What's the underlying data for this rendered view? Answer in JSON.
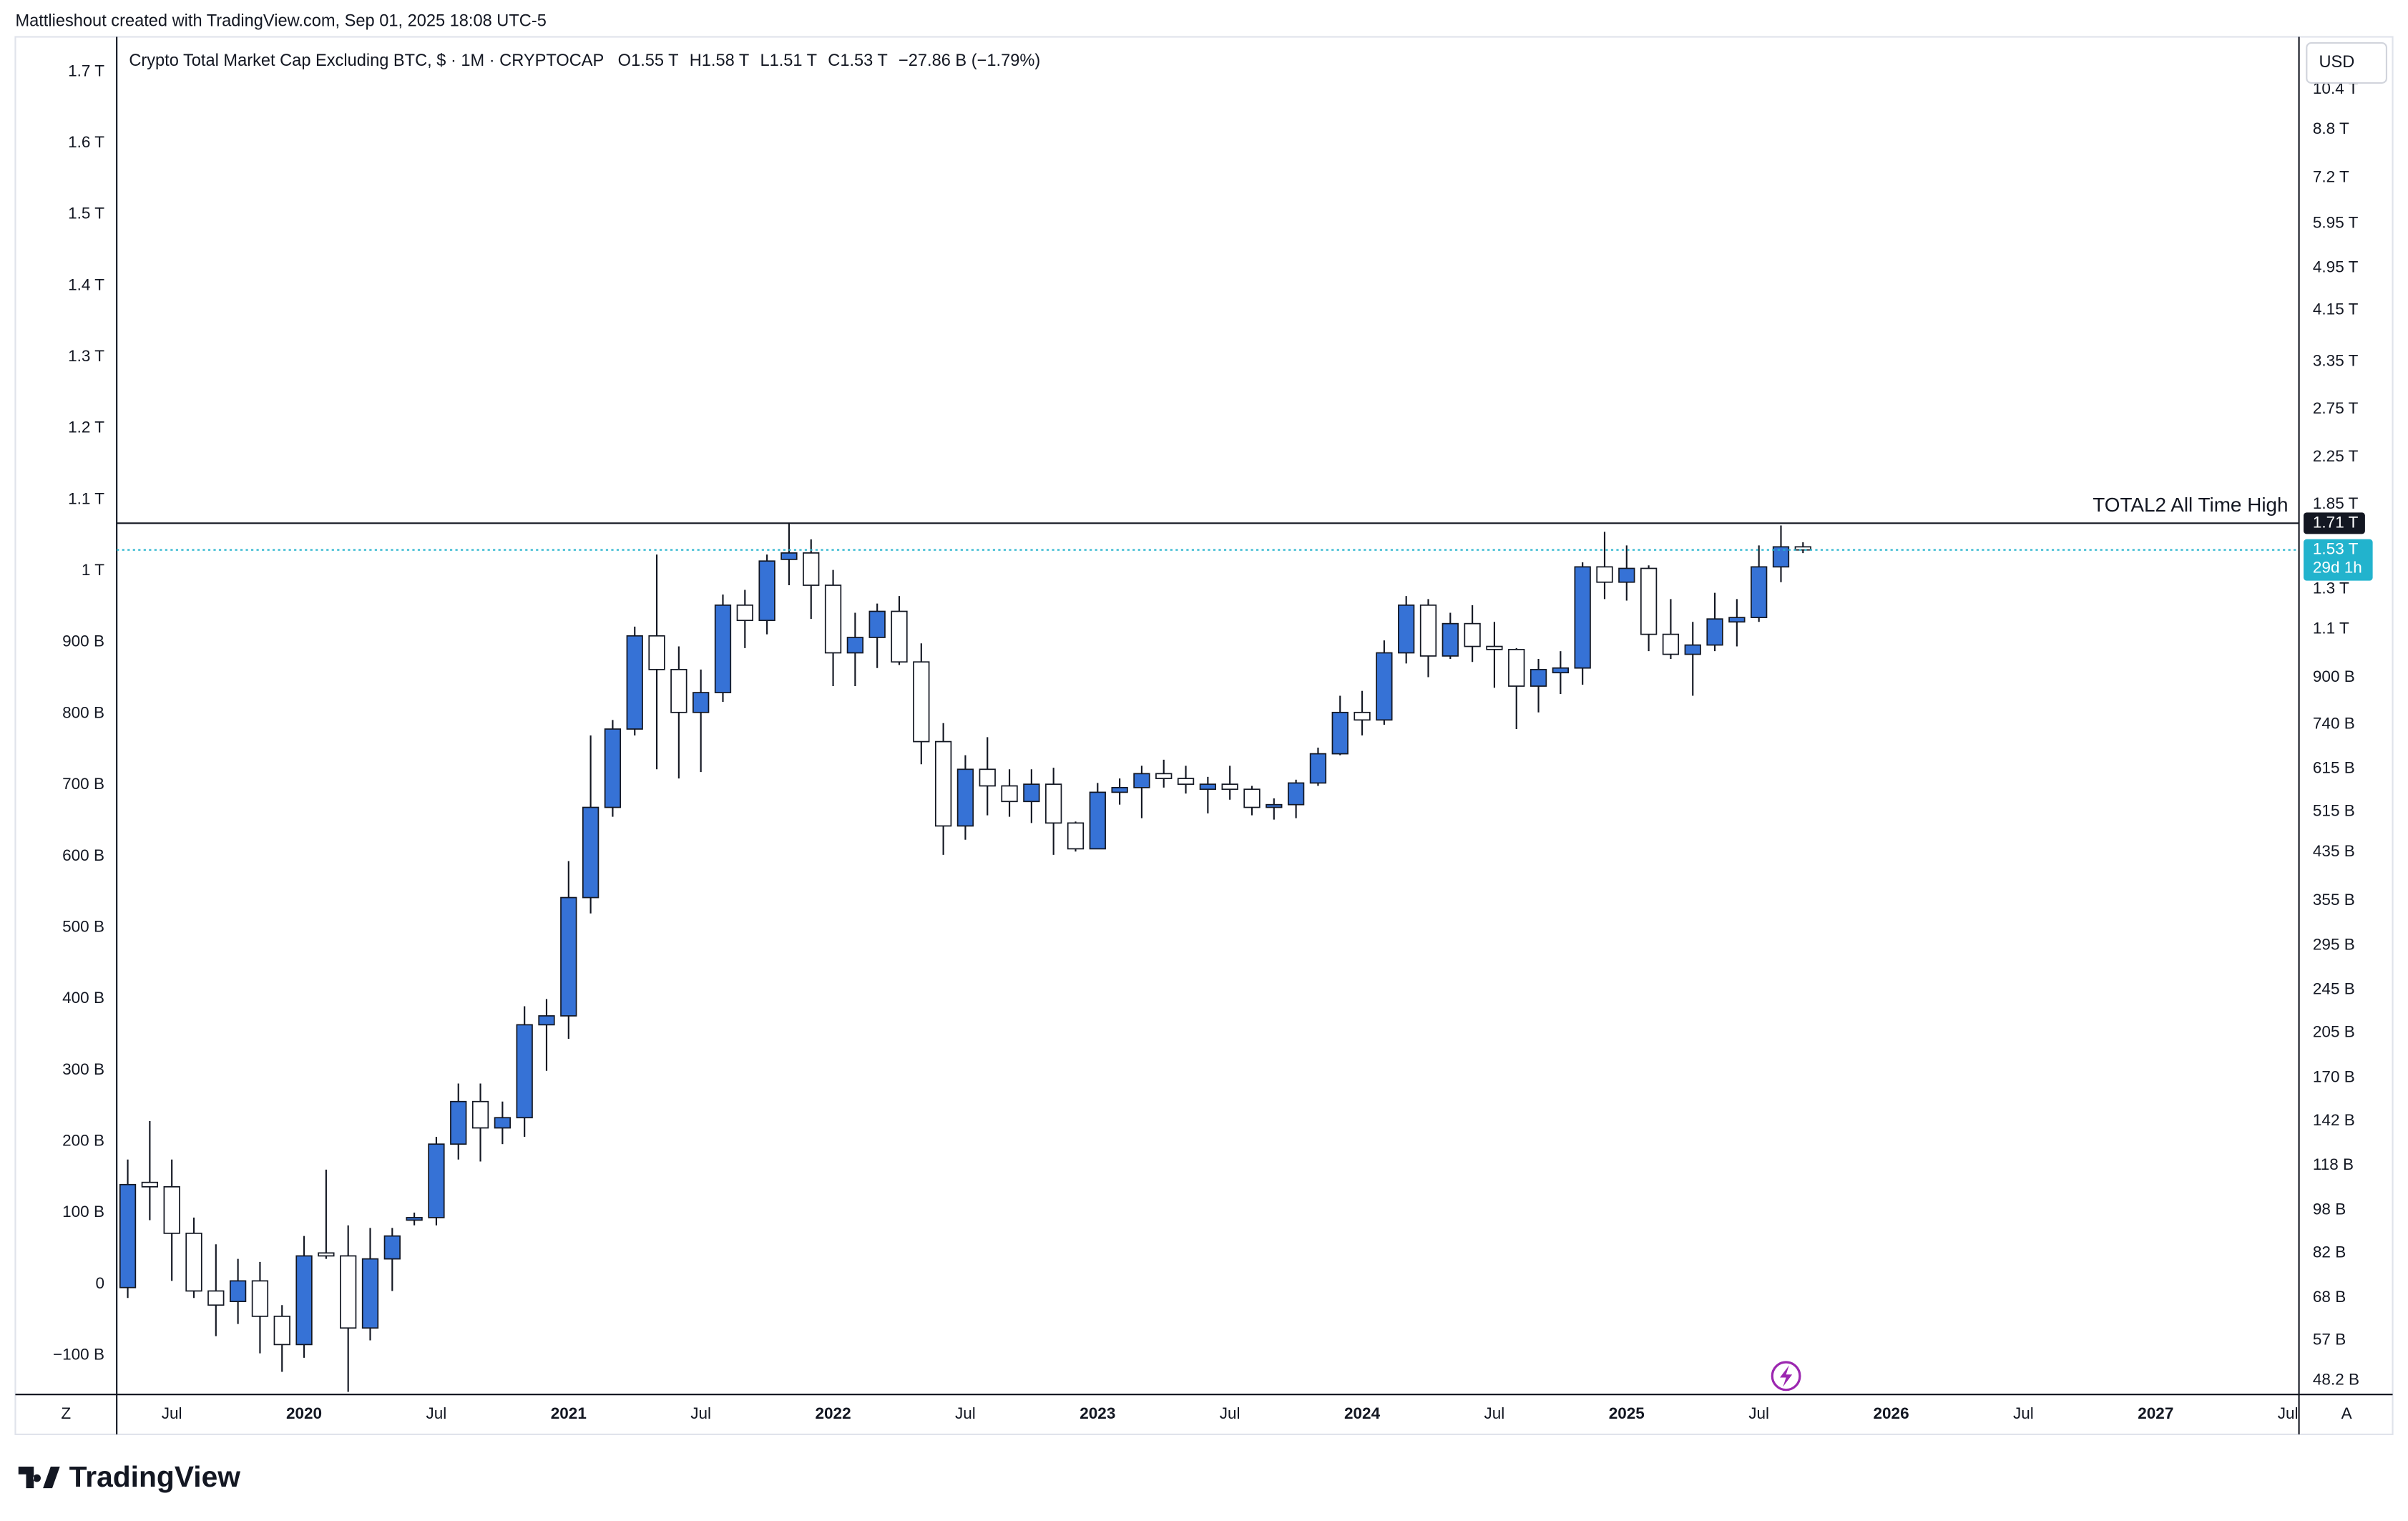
{
  "header": "Mattlieshout created with TradingView.com, Sep 01, 2025 18:08 UTC-5",
  "logo": "TradingView",
  "currency": "USD",
  "buttons": [
    "Z",
    "A"
  ],
  "chart_data": {
    "type": "candlestick",
    "title": "Crypto Total Market Cap Excluding BTC, $ · 1M · CRYPTOCAP",
    "legend_keys": [
      "O",
      "H",
      "L",
      "C"
    ],
    "legend_values": [
      "1.55 T",
      "1.58 T",
      "1.51 T",
      "1.53 T"
    ],
    "change": "−27.86 B (−1.79%)",
    "up_color": "#3672d6",
    "down_color": "#ffffff",
    "border_color": "#131722",
    "log_scale": true,
    "grid": false,
    "x": [
      "2019-05",
      "2019-06",
      "2019-07",
      "2019-08",
      "2019-09",
      "2019-10",
      "2019-11",
      "2019-12",
      "2020-01",
      "2020-02",
      "2020-03",
      "2020-04",
      "2020-05",
      "2020-06",
      "2020-07",
      "2020-08",
      "2020-09",
      "2020-10",
      "2020-11",
      "2020-12",
      "2021-01",
      "2021-02",
      "2021-03",
      "2021-04",
      "2021-05",
      "2021-06",
      "2021-07",
      "2021-08",
      "2021-09",
      "2021-10",
      "2021-11",
      "2021-12",
      "2022-01",
      "2022-02",
      "2022-03",
      "2022-04",
      "2022-05",
      "2022-06",
      "2022-07",
      "2022-08",
      "2022-09",
      "2022-10",
      "2022-11",
      "2022-12",
      "2023-01",
      "2023-02",
      "2023-03",
      "2023-04",
      "2023-05",
      "2023-06",
      "2023-07",
      "2023-08",
      "2023-09",
      "2023-10",
      "2023-11",
      "2023-12",
      "2024-01",
      "2024-02",
      "2024-03",
      "2024-04",
      "2024-05",
      "2024-06",
      "2024-07",
      "2024-08",
      "2024-09",
      "2024-10",
      "2024-11",
      "2024-12",
      "2025-01",
      "2025-02",
      "2025-03",
      "2025-04",
      "2025-05",
      "2025-06",
      "2025-07",
      "2025-08",
      "2025-09"
    ],
    "open": [
      71,
      110,
      108,
      89,
      70,
      67,
      73,
      63,
      56,
      82,
      81,
      60,
      80,
      94,
      95,
      129,
      154,
      138,
      144,
      212,
      220,
      360,
      524,
      726,
      1070,
      930,
      778,
      845,
      1216,
      1141,
      1471,
      1511,
      1321,
      997,
      1063,
      1185,
      960,
      689,
      485,
      614,
      573,
      537,
      577,
      491,
      441,
      558,
      569,
      603,
      591,
      565,
      577,
      565,
      524,
      530,
      580,
      655,
      778,
      754,
      997,
      1216,
      984,
      1126,
      1024,
      1011,
      868,
      918,
      936,
      1426,
      1338,
      1417,
      1077,
      991,
      1030,
      1134,
      1155,
      1426,
      1550
    ],
    "high": [
      121,
      142,
      121,
      95,
      85,
      80,
      79,
      66,
      88,
      116,
      92,
      91,
      91,
      97,
      133,
      166,
      166,
      154,
      229,
      236,
      419,
      707,
      754,
      1112,
      1501,
      1024,
      930,
      1271,
      1296,
      1501,
      1710,
      1599,
      1408,
      1178,
      1224,
      1263,
      1037,
      744,
      651,
      702,
      614,
      614,
      618,
      494,
      580,
      591,
      623,
      639,
      623,
      595,
      623,
      573,
      544,
      588,
      672,
      834,
      851,
      1050,
      1263,
      1247,
      1178,
      1216,
      1134,
      1017,
      972,
      1004,
      1453,
      1650,
      1559,
      1435,
      1247,
      1134,
      1280,
      1247,
      1559,
      1694,
      1580
    ],
    "low": [
      68,
      94,
      73,
      68,
      58,
      61,
      54,
      50,
      53,
      80,
      46,
      57,
      70,
      92,
      92,
      121,
      120,
      129,
      133,
      175,
      200,
      337,
      504,
      707,
      614,
      591,
      607,
      813,
      1017,
      1077,
      1321,
      1148,
      868,
      868,
      936,
      948,
      627,
      430,
      458,
      507,
      504,
      491,
      430,
      436,
      441,
      530,
      501,
      569,
      555,
      511,
      541,
      507,
      498,
      501,
      573,
      651,
      707,
      739,
      954,
      901,
      972,
      960,
      862,
      726,
      778,
      840,
      873,
      1247,
      1239,
      1004,
      972,
      834,
      1004,
      1024,
      1134,
      1338,
      1510
    ],
    "close": [
      109,
      108,
      89,
      70,
      66,
      73,
      63,
      56,
      81,
      81,
      60,
      80,
      88,
      95,
      129,
      154,
      138,
      144,
      212,
      220,
      360,
      524,
      726,
      1070,
      930,
      778,
      845,
      1216,
      1141,
      1461,
      1511,
      1321,
      997,
      1063,
      1185,
      960,
      689,
      485,
      614,
      573,
      537,
      577,
      491,
      441,
      558,
      569,
      603,
      591,
      577,
      577,
      565,
      524,
      530,
      580,
      655,
      778,
      754,
      997,
      1216,
      984,
      1126,
      1024,
      1011,
      868,
      930,
      936,
      1426,
      1338,
      1417,
      1077,
      991,
      1030,
      1148,
      1155,
      1426,
      1550,
      1530
    ],
    "xlim": [
      "2019-05",
      "2027-08"
    ],
    "xticks": [
      {
        "value": "2019-07",
        "label": "Jul"
      },
      {
        "value": "2020-01",
        "label": "2020"
      },
      {
        "value": "2020-07",
        "label": "Jul"
      },
      {
        "value": "2021-01",
        "label": "2021"
      },
      {
        "value": "2021-07",
        "label": "Jul"
      },
      {
        "value": "2022-01",
        "label": "2022"
      },
      {
        "value": "2022-07",
        "label": "Jul"
      },
      {
        "value": "2023-01",
        "label": "2023"
      },
      {
        "value": "2023-07",
        "label": "Jul"
      },
      {
        "value": "2024-01",
        "label": "2024"
      },
      {
        "value": "2024-07",
        "label": "Jul"
      },
      {
        "value": "2025-01",
        "label": "2025"
      },
      {
        "value": "2025-07",
        "label": "Jul"
      },
      {
        "value": "2026-01",
        "label": "2026"
      },
      {
        "value": "2026-07",
        "label": "Jul"
      },
      {
        "value": "2027-01",
        "label": "2027"
      },
      {
        "value": "2027-07",
        "label": "Jul"
      }
    ],
    "ylim": [
      45.5,
      12950
    ],
    "yticks": [
      {
        "value": 48.2,
        "label": "48.2 B"
      },
      {
        "value": 57,
        "label": "57 B"
      },
      {
        "value": 68,
        "label": "68 B"
      },
      {
        "value": 82,
        "label": "82 B"
      },
      {
        "value": 98,
        "label": "98 B"
      },
      {
        "value": 118,
        "label": "118 B"
      },
      {
        "value": 142,
        "label": "142 B"
      },
      {
        "value": 170,
        "label": "170 B"
      },
      {
        "value": 205,
        "label": "205 B"
      },
      {
        "value": 245,
        "label": "245 B"
      },
      {
        "value": 295,
        "label": "295 B"
      },
      {
        "value": 355,
        "label": "355 B"
      },
      {
        "value": 435,
        "label": "435 B"
      },
      {
        "value": 515,
        "label": "515 B"
      },
      {
        "value": 615,
        "label": "615 B"
      },
      {
        "value": 740,
        "label": "740 B"
      },
      {
        "value": 900,
        "label": "900 B"
      },
      {
        "value": 1100,
        "label": "1.1 T"
      },
      {
        "value": 1300,
        "label": "1.3 T"
      },
      {
        "value": 1850,
        "label": "1.85 T"
      },
      {
        "value": 2250,
        "label": "2.25 T"
      },
      {
        "value": 2750,
        "label": "2.75 T"
      },
      {
        "value": 3350,
        "label": "3.35 T"
      },
      {
        "value": 4150,
        "label": "4.15 T"
      },
      {
        "value": 4950,
        "label": "4.95 T"
      },
      {
        "value": 5950,
        "label": "5.95 T"
      },
      {
        "value": 7200,
        "label": "7.2 T"
      },
      {
        "value": 8800,
        "label": "8.8 T"
      },
      {
        "value": 10400,
        "label": "10.4 T"
      }
    ],
    "y2lim": [
      -154.7,
      1749
    ],
    "y2ticks": [
      {
        "value": -100,
        "label": "−100 B"
      },
      0,
      {
        "value": 100,
        "label": "100 B"
      },
      {
        "value": 200,
        "label": "200 B"
      },
      {
        "value": 300,
        "label": "300 B"
      },
      {
        "value": 400,
        "label": "400 B"
      },
      {
        "value": 500,
        "label": "500 B"
      },
      {
        "value": 600,
        "label": "600 B"
      },
      {
        "value": 700,
        "label": "700 B"
      },
      {
        "value": 800,
        "label": "800 B"
      },
      {
        "value": 900,
        "label": "900 B"
      },
      {
        "value": 1000,
        "label": "1 T"
      },
      {
        "value": 1100,
        "label": "1.1 T"
      },
      {
        "value": 1200,
        "label": "1.2 T"
      },
      {
        "value": 1300,
        "label": "1.3 T"
      },
      {
        "value": 1400,
        "label": "1.4 T"
      },
      {
        "value": 1500,
        "label": "1.5 T"
      },
      {
        "value": 1600,
        "label": "1.6 T"
      },
      {
        "value": 1700,
        "label": "1.7 T"
      }
    ],
    "hlines": [
      {
        "value": 1710,
        "label": "1.71 T",
        "text": "TOTAL2 All Time High",
        "color": "#131722"
      }
    ],
    "last_price": {
      "value": 1530,
      "label": "1.53 T",
      "countdown": "29d 1h",
      "color": "#22b3cd"
    }
  }
}
